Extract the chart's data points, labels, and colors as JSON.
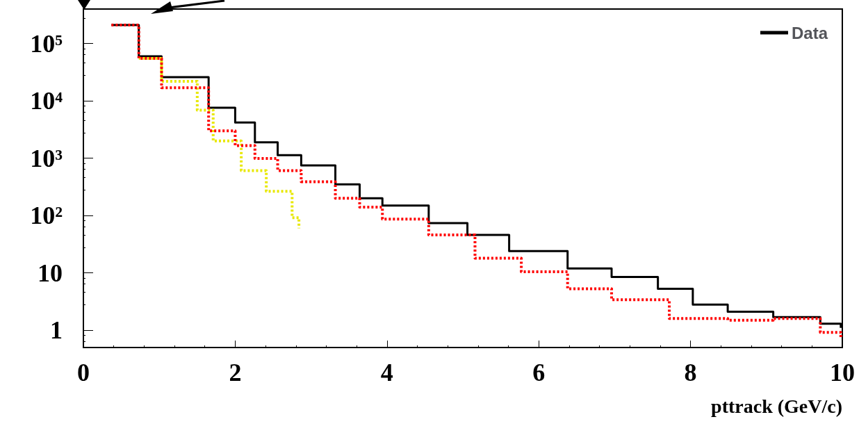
{
  "chart_data": {
    "type": "step",
    "xlabel": "pttrack (GeV/c)",
    "xlim": [
      0,
      10
    ],
    "xticks": [
      0,
      2,
      4,
      6,
      8,
      10
    ],
    "ylim": [
      0.5,
      400000
    ],
    "yticks": [
      1,
      10,
      {
        "value": 100,
        "label": "10²"
      },
      {
        "value": 1000,
        "label": "10³"
      },
      {
        "value": 10000,
        "label": "10⁴"
      },
      {
        "value": 100000,
        "label": "10⁵"
      }
    ],
    "log": "y",
    "grid": false,
    "legend": "top right",
    "marker": "none",
    "series": [
      {
        "name": "Data",
        "color": "#000000",
        "line_style": "solid",
        "x": [
          0.37,
          0.73,
          1.03,
          1.65,
          2.0,
          2.26,
          2.56,
          2.87,
          3.32,
          3.64,
          3.94,
          4.55,
          5.06,
          5.61,
          6.38,
          6.96,
          7.57,
          8.03,
          8.49,
          9.09,
          9.71,
          9.98
        ],
        "values": [
          210000,
          60000,
          26000,
          7600,
          4200,
          1900,
          1130,
          750,
          350,
          200,
          150,
          74,
          46,
          24,
          12,
          8.5,
          5.3,
          2.8,
          2.1,
          1.7,
          1.3,
          1.1
        ]
      },
      {
        "color": "#ff0000",
        "line_style": "dotted",
        "x": [
          0.37,
          0.73,
          1.03,
          1.65,
          2.0,
          2.26,
          2.56,
          2.87,
          3.32,
          3.64,
          3.94,
          4.55,
          5.16,
          5.77,
          6.38,
          6.96,
          7.72,
          8.49,
          9.09,
          9.71,
          9.98
        ],
        "values": [
          210000,
          55000,
          17000,
          3000,
          1660,
          990,
          610,
          390,
          200,
          140,
          87,
          46,
          18,
          10.5,
          5.3,
          3.4,
          1.6,
          1.5,
          1.6,
          0.92,
          0.76
        ]
      },
      {
        "color": "#e8e800",
        "line_style": "dotted",
        "x": [
          0.73,
          1.03,
          1.5,
          1.71,
          2.08,
          2.41,
          2.75,
          2.84
        ],
        "values": [
          55000,
          22000,
          6900,
          2000,
          610,
          265,
          92,
          60
        ]
      }
    ]
  }
}
